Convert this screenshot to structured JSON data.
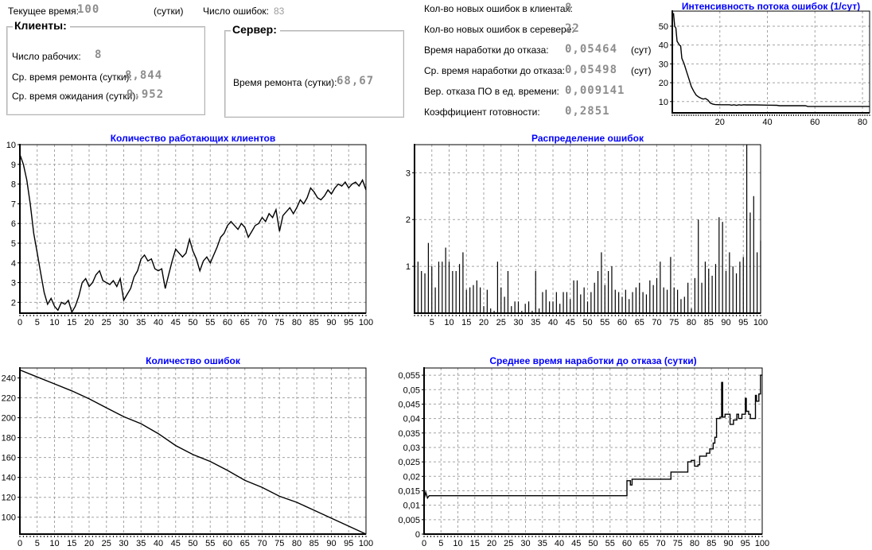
{
  "colors": {
    "title": "#0000ff",
    "value_text": "#8d8d8d",
    "grid": "#a3a3a3",
    "series": "#000000",
    "axis": "#000000"
  },
  "header": {
    "current_time_label": "Текущее время:",
    "current_time_value": "100",
    "current_time_unit": "(сутки)",
    "errors_count_label": "Число ошибок:",
    "errors_count_value": "83",
    "clients_group": {
      "title": "Клиенты:",
      "rows": [
        {
          "label": "Число рабочих:",
          "value": "8"
        },
        {
          "label": "Ср. время ремонта (сутки):",
          "value": "8,844"
        },
        {
          "label": "Ср. время ожидания (сутки):",
          "value": "9,952"
        }
      ]
    },
    "server_group": {
      "title": "Сервер:",
      "row": {
        "label": "Время ремонта (сутки):",
        "value": "68,67"
      }
    },
    "stats": [
      {
        "label": "Кол-во новых ошибок в клиентах:",
        "value": "8",
        "unit": ""
      },
      {
        "label": "Кол-во новых ошибок в серевере:",
        "value": "22",
        "unit": ""
      },
      {
        "label": "Время наработки до отказа:",
        "value": "0,05464",
        "unit": "(сут)"
      },
      {
        "label": "Ср. время наработки до отказа:",
        "value": "0,05498",
        "unit": "(сут)"
      },
      {
        "label": "Вер. отказа ПО в ед. времени:",
        "value": "0,009141",
        "unit": ""
      },
      {
        "label": "Коэффициент готовности:",
        "value": "0,2851",
        "unit": ""
      }
    ]
  },
  "chart_data": [
    {
      "id": "working-clients",
      "type": "line",
      "title": "Количество работающих клиентов",
      "xlim": [
        0,
        100
      ],
      "ylim": [
        1.45,
        10
      ],
      "xticks": [
        0,
        5,
        10,
        15,
        20,
        25,
        30,
        35,
        40,
        45,
        50,
        55,
        60,
        65,
        70,
        75,
        80,
        85,
        90,
        95,
        100
      ],
      "yticks": [
        2,
        3,
        4,
        5,
        6,
        7,
        8,
        9,
        10
      ],
      "x_start": 0,
      "x_step": 1,
      "values": [
        9.5,
        9,
        8.2,
        7,
        5.5,
        4.5,
        3.5,
        2.5,
        1.9,
        2.2,
        1.8,
        1.6,
        2,
        1.9,
        2.1,
        1.5,
        1.8,
        2.3,
        3,
        3.2,
        2.8,
        3,
        3.4,
        3.6,
        3.1,
        3,
        2.9,
        3.1,
        2.8,
        3.2,
        2.1,
        2.4,
        2.7,
        3.3,
        3.6,
        4.2,
        4.4,
        4.1,
        4.2,
        3.7,
        3.6,
        3.7,
        2.7,
        3.4,
        4.1,
        4.7,
        4.5,
        4.3,
        4.5,
        5.2,
        4.6,
        4.2,
        3.6,
        4.1,
        4.3,
        4,
        4.4,
        4.8,
        5.3,
        5.5,
        5.9,
        6.1,
        5.9,
        5.7,
        6,
        5.8,
        5.3,
        5.6,
        5.9,
        6,
        6.3,
        6.1,
        6.5,
        6.3,
        6.7,
        5.6,
        6.4,
        6.6,
        6.8,
        6.5,
        6.8,
        7.2,
        7,
        7.3,
        7.8,
        7.6,
        7.3,
        7.2,
        7.4,
        7.7,
        7.5,
        7.8,
        8,
        7.9,
        8.1,
        7.8,
        8,
        8.1,
        7.9,
        8.2,
        7.7
      ]
    },
    {
      "id": "error-distribution",
      "type": "bar",
      "title": "Распределение ошибок",
      "xlim": [
        0,
        100
      ],
      "ylim": [
        0,
        3.6
      ],
      "xticks": [
        5,
        10,
        15,
        20,
        25,
        30,
        35,
        40,
        45,
        50,
        55,
        60,
        65,
        70,
        75,
        80,
        85,
        90,
        95,
        100
      ],
      "yticks": [
        1,
        2,
        3
      ],
      "x_start": 1,
      "x_step": 1,
      "values": [
        1.1,
        0.9,
        0.85,
        1.5,
        1,
        0.55,
        1.1,
        1.1,
        1.4,
        1.1,
        0.9,
        0.9,
        1.05,
        1.3,
        0.5,
        0.55,
        0.6,
        0.7,
        0.55,
        0.15,
        0.5,
        0.1,
        0.05,
        1.1,
        0.55,
        0.35,
        0.9,
        0.15,
        0.25,
        0.25,
        0.05,
        0.2,
        0.25,
        0.05,
        0.9,
        0.1,
        0.45,
        0.5,
        0.25,
        0.25,
        0.45,
        0.2,
        0.45,
        0.45,
        0.3,
        0.7,
        0.7,
        0.4,
        0.55,
        0.25,
        0.45,
        0.65,
        0.9,
        1.3,
        0.6,
        0.9,
        1,
        0.5,
        0.45,
        0.35,
        0.5,
        0.3,
        0.45,
        0.55,
        0.65,
        0.45,
        0.4,
        0.7,
        0.6,
        0.75,
        1.1,
        0.55,
        0.5,
        1.2,
        0.55,
        0.5,
        0.3,
        0.35,
        0.65,
        0.1,
        0.75,
        2,
        0.65,
        1.1,
        0.95,
        0.8,
        1.05,
        2.05,
        1.95,
        0.9,
        1.3,
        1,
        0.85,
        1.1,
        1.2,
        3.6,
        2.15,
        2.5,
        1.3,
        1.55
      ]
    },
    {
      "id": "errors-count",
      "type": "line",
      "title": "Количество ошибок",
      "xlim": [
        0,
        100
      ],
      "ylim": [
        83,
        250
      ],
      "xticks": [
        0,
        5,
        10,
        15,
        20,
        25,
        30,
        35,
        40,
        45,
        50,
        55,
        60,
        65,
        70,
        75,
        80,
        85,
        90,
        95,
        100
      ],
      "yticks": [
        100,
        120,
        140,
        160,
        180,
        200,
        220,
        240
      ],
      "points": [
        [
          0,
          248
        ],
        [
          5,
          241
        ],
        [
          10,
          234
        ],
        [
          15,
          227
        ],
        [
          20,
          219
        ],
        [
          25,
          210
        ],
        [
          30,
          201
        ],
        [
          35,
          194
        ],
        [
          40,
          184
        ],
        [
          45,
          172
        ],
        [
          50,
          163
        ],
        [
          55,
          156
        ],
        [
          60,
          147
        ],
        [
          65,
          137
        ],
        [
          70,
          130
        ],
        [
          75,
          121
        ],
        [
          80,
          115
        ],
        [
          85,
          107
        ],
        [
          90,
          99
        ],
        [
          95,
          91
        ],
        [
          100,
          83
        ]
      ]
    },
    {
      "id": "mean-time-to-failure",
      "type": "line",
      "title": "Среднее время наработки до отказа (сутки)",
      "xlim": [
        0,
        100
      ],
      "ylim": [
        0,
        0.0575
      ],
      "xticks": [
        0,
        5,
        10,
        15,
        20,
        25,
        30,
        35,
        40,
        45,
        50,
        55,
        60,
        65,
        70,
        75,
        80,
        85,
        90,
        95,
        100
      ],
      "yticks": [
        0,
        0.005,
        0.01,
        0.015,
        0.02,
        0.025,
        0.03,
        0.035,
        0.04,
        0.045,
        0.05,
        0.055
      ],
      "ytick_labels": [
        "0",
        "0,005",
        "0,01",
        "0,015",
        "0,02",
        "0,025",
        "0,03",
        "0,035",
        "0,04",
        "0,045",
        "0,05",
        "0,055"
      ],
      "points": [
        [
          0,
          0.012
        ],
        [
          0.5,
          0.0145
        ],
        [
          1,
          0.0125
        ],
        [
          1.5,
          0.0133
        ],
        [
          60,
          0.0133
        ],
        [
          60,
          0.0185
        ],
        [
          61,
          0.0185
        ],
        [
          61,
          0.017
        ],
        [
          61.5,
          0.017
        ],
        [
          61.5,
          0.019
        ],
        [
          73,
          0.019
        ],
        [
          73,
          0.0215
        ],
        [
          78,
          0.0215
        ],
        [
          78,
          0.025
        ],
        [
          79,
          0.025
        ],
        [
          79,
          0.0255
        ],
        [
          80,
          0.0255
        ],
        [
          80,
          0.0235
        ],
        [
          81,
          0.0235
        ],
        [
          81,
          0.024
        ],
        [
          81.5,
          0.024
        ],
        [
          81.5,
          0.027
        ],
        [
          83.5,
          0.027
        ],
        [
          83.5,
          0.028
        ],
        [
          84.5,
          0.028
        ],
        [
          84.5,
          0.0295
        ],
        [
          85.5,
          0.0295
        ],
        [
          85.5,
          0.0315
        ],
        [
          86,
          0.0315
        ],
        [
          86,
          0.0335
        ],
        [
          86.5,
          0.0335
        ],
        [
          86.5,
          0.04
        ],
        [
          87.5,
          0.04
        ],
        [
          87.5,
          0.0405
        ],
        [
          88,
          0.0405
        ],
        [
          88,
          0.0525
        ],
        [
          88.3,
          0.0525
        ],
        [
          88.3,
          0.0405
        ],
        [
          89,
          0.0405
        ],
        [
          89,
          0.0415
        ],
        [
          90.5,
          0.0415
        ],
        [
          90.5,
          0.038
        ],
        [
          91.5,
          0.038
        ],
        [
          91.5,
          0.0395
        ],
        [
          92.5,
          0.0395
        ],
        [
          92.5,
          0.0415
        ],
        [
          93,
          0.0415
        ],
        [
          93,
          0.04
        ],
        [
          94,
          0.04
        ],
        [
          94,
          0.0415
        ],
        [
          95,
          0.0415
        ],
        [
          95,
          0.047
        ],
        [
          95.3,
          0.047
        ],
        [
          95.3,
          0.0425
        ],
        [
          96,
          0.0425
        ],
        [
          96,
          0.0415
        ],
        [
          96.5,
          0.0415
        ],
        [
          96.5,
          0.04
        ],
        [
          98,
          0.04
        ],
        [
          98,
          0.048
        ],
        [
          98.3,
          0.048
        ],
        [
          98.3,
          0.046
        ],
        [
          99,
          0.046
        ],
        [
          99,
          0.0485
        ],
        [
          99.5,
          0.0485
        ],
        [
          99.5,
          0.055
        ],
        [
          100,
          0.055
        ]
      ]
    },
    {
      "id": "error-flow-intensity",
      "type": "line",
      "title": "Интенсивность потока ошибок  (1/сут)",
      "xlim": [
        0,
        83
      ],
      "ylim": [
        4,
        58
      ],
      "xticks": [
        20,
        40,
        60,
        80
      ],
      "yticks": [
        10,
        20,
        30,
        40,
        50
      ],
      "points": [
        [
          0.5,
          57
        ],
        [
          1,
          50
        ],
        [
          1.5,
          49
        ],
        [
          2,
          42
        ],
        [
          3,
          40
        ],
        [
          3.5,
          39.5
        ],
        [
          4,
          33
        ],
        [
          5,
          30
        ],
        [
          6,
          26
        ],
        [
          7,
          22
        ],
        [
          8,
          18
        ],
        [
          9,
          15.5
        ],
        [
          10,
          13.5
        ],
        [
          11,
          12.5
        ],
        [
          12,
          11.8
        ],
        [
          13,
          11.3
        ],
        [
          14,
          11.6
        ],
        [
          15,
          10.8
        ],
        [
          16,
          9.2
        ],
        [
          17,
          8.7
        ],
        [
          18,
          8.4
        ],
        [
          20,
          8.3
        ],
        [
          24,
          8.3
        ],
        [
          25,
          8.1
        ],
        [
          26,
          8.3
        ],
        [
          27,
          8
        ],
        [
          28,
          8.3
        ],
        [
          29,
          8.1
        ],
        [
          30,
          8.3
        ],
        [
          31,
          8.2
        ],
        [
          35,
          8.2
        ],
        [
          40,
          8.1
        ],
        [
          44,
          8
        ],
        [
          45,
          7.8
        ],
        [
          50,
          7.8
        ],
        [
          56,
          7.8
        ],
        [
          57,
          7.4
        ],
        [
          60,
          7.4
        ],
        [
          70,
          7.4
        ],
        [
          83,
          7.4
        ]
      ]
    }
  ]
}
